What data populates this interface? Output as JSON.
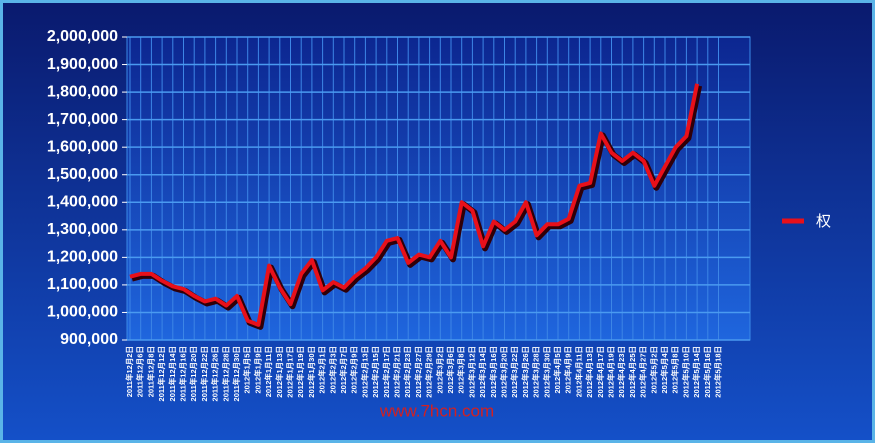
{
  "chart_data": {
    "type": "line",
    "categories": [
      "2011年12月2日",
      "2011年12月6日",
      "2011年12月8日",
      "2011年12月12日",
      "2011年12月14日",
      "2011年12月16日",
      "2011年12月20日",
      "2011年12月22日",
      "2011年12月26日",
      "2011年12月28日",
      "2011年12月30日",
      "2012年1月5日",
      "2012年1月9日",
      "2012年1月11日",
      "2012年1月13日",
      "2012年1月17日",
      "2012年1月19日",
      "2012年1月30日",
      "2012年2月1日",
      "2012年2月3日",
      "2012年2月7日",
      "2012年2月9日",
      "2012年2月13日",
      "2012年2月15日",
      "2012年2月17日",
      "2012年2月21日",
      "2012年2月23日",
      "2012年2月27日",
      "2012年2月29日",
      "2012年3月2日",
      "2012年3月6日",
      "2012年3月8日",
      "2012年3月12日",
      "2012年3月14日",
      "2012年3月16日",
      "2012年3月20日",
      "2012年3月22日",
      "2012年3月26日",
      "2012年3月28日",
      "2012年3月30日",
      "2012年4月5日",
      "2012年4月9日",
      "2012年4月11日",
      "2012年4月13日",
      "2012年4月17日",
      "2012年4月19日",
      "2012年4月23日",
      "2012年4月25日",
      "2012年4月27日",
      "2012年5月2日",
      "2012年5月4日",
      "2012年5月8日",
      "2012年5月10日",
      "2012年5月14日",
      "2012年5月16日",
      "2012年5月18日"
    ],
    "series": [
      {
        "name": "权",
        "color": "#e8101a",
        "values": [
          1130000,
          1140000,
          1140000,
          1115000,
          1095000,
          1085000,
          1060000,
          1040000,
          1050000,
          1025000,
          1060000,
          970000,
          955000,
          1170000,
          1090000,
          1030000,
          1140000,
          1190000,
          1080000,
          1110000,
          1090000,
          1130000,
          1160000,
          1200000,
          1260000,
          1270000,
          1180000,
          1210000,
          1200000,
          1260000,
          1200000,
          1400000,
          1370000,
          1240000,
          1330000,
          1300000,
          1330000,
          1400000,
          1280000,
          1320000,
          1320000,
          1340000,
          1460000,
          1470000,
          1650000,
          1580000,
          1550000,
          1580000,
          1550000,
          1460000,
          1530000,
          1600000,
          1640000,
          1830000,
          null,
          null
        ]
      }
    ],
    "ylim": [
      900000,
      2000000
    ],
    "yticks": [
      {
        "value": 900000,
        "label": "900,000"
      },
      {
        "value": 1000000,
        "label": "1,000,000"
      },
      {
        "value": 1100000,
        "label": "1,100,000"
      },
      {
        "value": 1200000,
        "label": "1,200,000"
      },
      {
        "value": 1300000,
        "label": "1,300,000"
      },
      {
        "value": 1400000,
        "label": "1,400,000"
      },
      {
        "value": 1500000,
        "label": "1,500,000"
      },
      {
        "value": 1600000,
        "label": "1,600,000"
      },
      {
        "value": 1700000,
        "label": "1,700,000"
      },
      {
        "value": 1800000,
        "label": "1,800,000"
      },
      {
        "value": 1900000,
        "label": "1,900,000"
      },
      {
        "value": 2000000,
        "label": "2,000,000"
      }
    ],
    "grid": true,
    "legend": "right",
    "watermark": "www.7hcn.com"
  }
}
